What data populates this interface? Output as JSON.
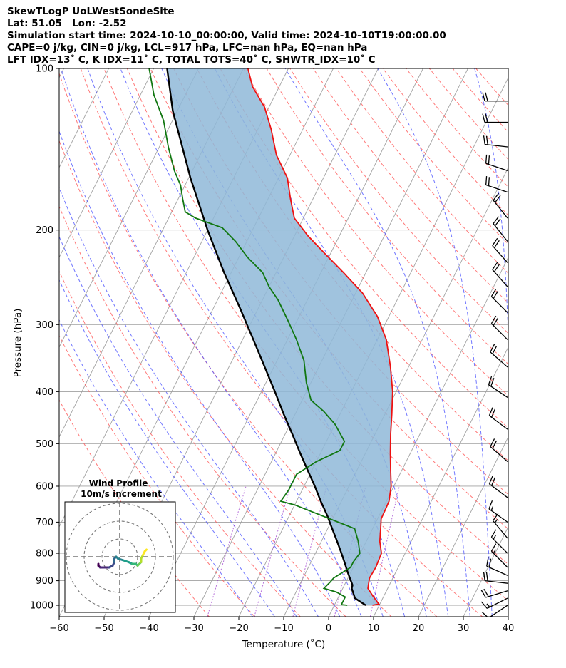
{
  "header": {
    "line1": "SkewTLogP UoLWestSondeSite",
    "line2": "Lat: 51.05   Lon: -2.52",
    "line3": "Simulation start time: 2024-10-10_00:00:00, Valid time: 2024-10-10T19:00:00.00",
    "line4": "CAPE=0 j/kg, CIN=0 j/kg, LCL=917 hPa, LFC=nan hPa, EQ=nan hPa",
    "line5": "LFT IDX=13˚ C, K IDX=11˚ C, TOTAL TOTS=40˚ C, SHWTR_IDX=10˚ C"
  },
  "chart_data": {
    "type": "line",
    "subtype": "skew-t log-p",
    "xlabel": "Temperature (˚C)",
    "ylabel": "Pressure (hPa)",
    "xlim": [
      -60,
      40
    ],
    "ylim": [
      1050,
      100
    ],
    "x_ticks": [
      "−60",
      "−50",
      "−40",
      "−30",
      "−20",
      "−10",
      "0",
      "10",
      "20",
      "30",
      "40"
    ],
    "x_tick_values": [
      -60,
      -50,
      -40,
      -30,
      -20,
      -10,
      0,
      10,
      20,
      30,
      40
    ],
    "y_ticks": [
      "1000",
      "900",
      "800",
      "700",
      "600",
      "500",
      "400",
      "300",
      "200",
      "100"
    ],
    "y_tick_values": [
      1000,
      900,
      800,
      700,
      600,
      500,
      400,
      300,
      200,
      100
    ],
    "colors": {
      "temperature": "#ee1111",
      "dewpoint": "#117711",
      "parcel": "#000000",
      "cin_shade": "#8fb8d8",
      "dry_adiabat": "#ff6060",
      "moist_adiabat": "#4d55ff",
      "mixing_ratio": "#9933cc",
      "isotherm": "#a0a0a0",
      "barb": "#000000"
    },
    "series": [
      {
        "name": "Temperature",
        "points_tp": [
          [
            8.5,
            1000
          ],
          [
            9.8,
            995
          ],
          [
            7.5,
            960
          ],
          [
            5.6,
            930
          ],
          [
            4.8,
            890
          ],
          [
            5.0,
            850
          ],
          [
            4.7,
            800
          ],
          [
            3.0,
            760
          ],
          [
            1.8,
            720
          ],
          [
            0.8,
            690
          ],
          [
            0.7,
            660
          ],
          [
            0.6,
            640
          ],
          [
            -0.6,
            600
          ],
          [
            -2.5,
            560
          ],
          [
            -4.5,
            520
          ],
          [
            -6.5,
            480
          ],
          [
            -8.5,
            440
          ],
          [
            -10.8,
            400
          ],
          [
            -14,
            360
          ],
          [
            -18,
            320
          ],
          [
            -22.5,
            290
          ],
          [
            -28.5,
            262
          ],
          [
            -35,
            240
          ],
          [
            -41,
            222
          ],
          [
            -47,
            205
          ],
          [
            -52,
            190
          ],
          [
            -55,
            175
          ],
          [
            -58,
            160
          ],
          [
            -63,
            145
          ],
          [
            -67,
            130
          ],
          [
            -71,
            118
          ],
          [
            -76,
            108
          ],
          [
            -79,
            100
          ]
        ]
      },
      {
        "name": "Dewpoint",
        "points_tp": [
          [
            2.9,
            1000
          ],
          [
            1.5,
            997
          ],
          [
            1.5,
            985
          ],
          [
            1.5,
            965
          ],
          [
            -1.0,
            945
          ],
          [
            -4.2,
            930
          ],
          [
            -3.5,
            905
          ],
          [
            -3.2,
            890
          ],
          [
            -0.6,
            850
          ],
          [
            -0.6,
            830
          ],
          [
            -0.1,
            800
          ],
          [
            -1.8,
            760
          ],
          [
            -4.0,
            720
          ],
          [
            -20,
            650
          ],
          [
            -23.5,
            640
          ],
          [
            -23.0,
            610
          ],
          [
            -23,
            570
          ],
          [
            -20,
            540
          ],
          [
            -16,
            515
          ],
          [
            -16,
            495
          ],
          [
            -20,
            460
          ],
          [
            -24,
            435
          ],
          [
            -28,
            415
          ],
          [
            -31,
            385
          ],
          [
            -34,
            350
          ],
          [
            -38,
            320
          ],
          [
            -42,
            295
          ],
          [
            -46.5,
            270
          ],
          [
            -50,
            255
          ],
          [
            -53,
            240
          ],
          [
            -58,
            225
          ],
          [
            -62.5,
            210
          ],
          [
            -67,
            198
          ],
          [
            -74,
            190
          ],
          [
            -77,
            185
          ],
          [
            -79,
            175
          ],
          [
            -81,
            165
          ],
          [
            -84,
            155
          ],
          [
            -88,
            140
          ],
          [
            -92,
            125
          ],
          [
            -97,
            112
          ],
          [
            -101,
            100
          ]
        ]
      },
      {
        "name": "Parcel",
        "points_tp": [
          [
            7.0,
            1000
          ],
          [
            3.8,
            970
          ],
          [
            2.0,
            930
          ],
          [
            1.8,
            917
          ],
          [
            -0.6,
            870
          ],
          [
            -2.6,
            830
          ],
          [
            -4.2,
            800
          ],
          [
            -6.5,
            760
          ],
          [
            -9.0,
            720
          ],
          [
            -11.6,
            680
          ],
          [
            -14.6,
            640
          ],
          [
            -17.6,
            600
          ],
          [
            -21,
            560
          ],
          [
            -24.6,
            520
          ],
          [
            -28.4,
            480
          ],
          [
            -32.6,
            440
          ],
          [
            -37,
            400
          ],
          [
            -42,
            360
          ],
          [
            -47.6,
            320
          ],
          [
            -54,
            280
          ],
          [
            -61.6,
            240
          ],
          [
            -70,
            200
          ],
          [
            -79.6,
            160
          ],
          [
            -91,
            120
          ],
          [
            -97,
            100
          ]
        ]
      }
    ],
    "wind_barbs": [
      {
        "p": 1000,
        "u": -6,
        "v": -4,
        "speed_kt": 12
      },
      {
        "p": 970,
        "u": -8,
        "v": -4,
        "speed_kt": 15
      },
      {
        "p": 940,
        "u": -10,
        "v": -3,
        "speed_kt": 20
      },
      {
        "p": 910,
        "u": -9,
        "v": 1,
        "speed_kt": 20
      },
      {
        "p": 880,
        "u": -9,
        "v": 4,
        "speed_kt": 20
      },
      {
        "p": 850,
        "u": -6,
        "v": 6,
        "speed_kt": 18
      },
      {
        "p": 800,
        "u": -6,
        "v": 6,
        "speed_kt": 18
      },
      {
        "p": 750,
        "u": -5,
        "v": 6,
        "speed_kt": 15
      },
      {
        "p": 700,
        "u": -7,
        "v": 5,
        "speed_kt": 18
      },
      {
        "p": 630,
        "u": -8,
        "v": 6,
        "speed_kt": 20
      },
      {
        "p": 540,
        "u": -8,
        "v": 7,
        "speed_kt": 20
      },
      {
        "p": 470,
        "u": -8,
        "v": 6,
        "speed_kt": 20
      },
      {
        "p": 410,
        "u": -9,
        "v": 6,
        "speed_kt": 22
      },
      {
        "p": 360,
        "u": -8,
        "v": 7,
        "speed_kt": 22
      },
      {
        "p": 320,
        "u": -8,
        "v": 8,
        "speed_kt": 22
      },
      {
        "p": 285,
        "u": -8,
        "v": 8,
        "speed_kt": 22
      },
      {
        "p": 255,
        "u": -8,
        "v": 9,
        "speed_kt": 22
      },
      {
        "p": 230,
        "u": -8,
        "v": 9,
        "speed_kt": 22
      },
      {
        "p": 210,
        "u": -8,
        "v": 10,
        "speed_kt": 22
      },
      {
        "p": 190,
        "u": -8,
        "v": 10,
        "speed_kt": 22
      },
      {
        "p": 170,
        "u": -9,
        "v": 3,
        "speed_kt": 22
      },
      {
        "p": 155,
        "u": -9,
        "v": 3,
        "speed_kt": 22
      },
      {
        "p": 140,
        "u": -9,
        "v": 1,
        "speed_kt": 22
      },
      {
        "p": 126,
        "u": -9,
        "v": 0,
        "speed_kt": 20
      },
      {
        "p": 115,
        "u": -9,
        "v": 0,
        "speed_kt": 20
      }
    ],
    "hodograph": {
      "title": "Wind Profile",
      "subtitle": "10m/s increment",
      "ring_step_ms": 10,
      "rings": [
        10,
        20,
        30
      ],
      "points_uv": [
        [
          -12,
          -4
        ],
        [
          -12,
          -5
        ],
        [
          -11,
          -6
        ],
        [
          -9,
          -6
        ],
        [
          -6,
          -6
        ],
        [
          -4,
          -5
        ],
        [
          -3,
          -3
        ],
        [
          -3,
          -1
        ],
        [
          -2,
          0
        ],
        [
          -1,
          -1
        ],
        [
          2,
          -2
        ],
        [
          5,
          -3
        ],
        [
          7,
          -4
        ],
        [
          9,
          -4
        ],
        [
          10,
          -5
        ],
        [
          11,
          -4
        ],
        [
          12,
          -3
        ],
        [
          12,
          -1
        ],
        [
          13,
          1
        ],
        [
          14,
          3
        ],
        [
          15,
          4
        ]
      ],
      "colormap": "viridis"
    }
  }
}
